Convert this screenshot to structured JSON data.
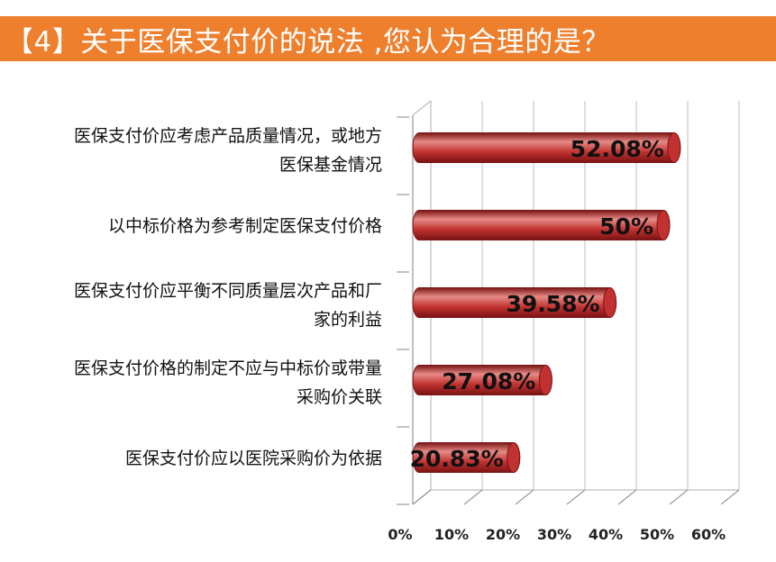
{
  "header": {
    "title": "【4】关于医保支付价的说法 ,您认为合理的是？"
  },
  "colors": {
    "title_band": "#ee7f2d",
    "bar_fill": "#c0312f",
    "bar_dark": "#7a1414",
    "bar_highlight": "#e68a86"
  },
  "chart_data": {
    "type": "bar",
    "orientation": "horizontal",
    "categories": [
      [
        "医保支付价应考虑产品质量情况，或地方",
        "医保基金情况"
      ],
      [
        "以中标价格为参考制定医保支付价格"
      ],
      [
        "医保支付价应平衡不同质量层次产品和厂",
        "家的利益"
      ],
      [
        "医保支付价格的制定不应与中标价或带量",
        "采购价关联"
      ],
      [
        "医保支付价应以医院采购价为依据"
      ]
    ],
    "values": [
      52.08,
      50,
      39.58,
      27.08,
      20.83
    ],
    "data_labels": [
      "52.08%",
      "50%",
      "39.58%",
      "27.08%",
      "20.83%"
    ],
    "x_ticks": [
      "0%",
      "10%",
      "20%",
      "30%",
      "40%",
      "50%",
      "60%"
    ],
    "xlim": [
      0,
      60
    ],
    "grid": true,
    "style": "3d-cylinder"
  }
}
